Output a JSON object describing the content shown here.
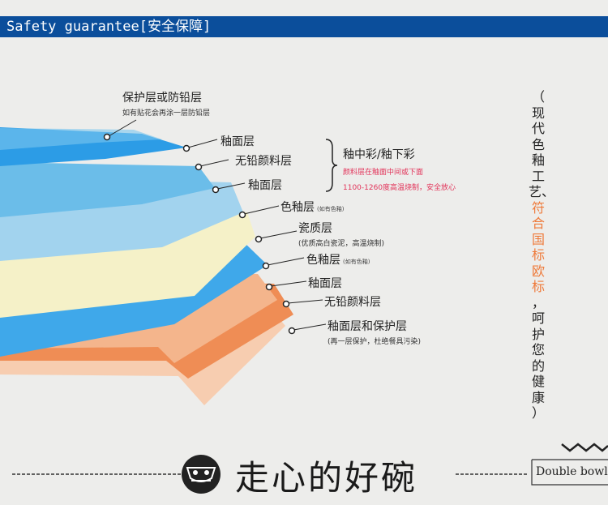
{
  "header": {
    "title": "Safety guarantee[安全保障]"
  },
  "labels": {
    "protective": {
      "title": "保护层或防铅层",
      "note": "如有贴花会再涂一层防铅层"
    },
    "glaze1": "釉面层",
    "leadfree1": "无铅颜料层",
    "glaze2": "釉面层",
    "color_glaze1": {
      "title": "色釉层",
      "note": "(如有色釉)"
    },
    "porcelain": {
      "title": "瓷质层",
      "note": "(优质高白瓷泥，高温烧制)"
    },
    "color_glaze2": {
      "title": "色釉层",
      "note": "(如有色釉)"
    },
    "glaze3": "釉面层",
    "leadfree2": "无铅颜料层",
    "glaze_protect": {
      "title": "釉面层和保护层",
      "note": "(再一层保护，杜绝餐具污染)"
    }
  },
  "bracket": {
    "title": "釉中彩/釉下彩",
    "line1": "颜料层在釉面中间或下面",
    "line2": "1100-1260度高温烧制，安全放心"
  },
  "side_text": {
    "open": "（",
    "part1": "现代色釉工艺、",
    "part2": "符合国标欧标",
    "part3": "，呵护您的健康",
    "close": "）"
  },
  "footer": {
    "slogan": "走心的好碗",
    "brand": "Double bowl"
  },
  "colors": {
    "header_bg": "#0b4e9b",
    "highlight": "#ee7a3a",
    "red_note": "#e2345a",
    "blue_dark": "#2c9ce6",
    "blue_light": "#9fd4ee",
    "cream": "#f5f1c8",
    "orange_light": "#f6c7a6",
    "orange_dark": "#ee8b52"
  }
}
